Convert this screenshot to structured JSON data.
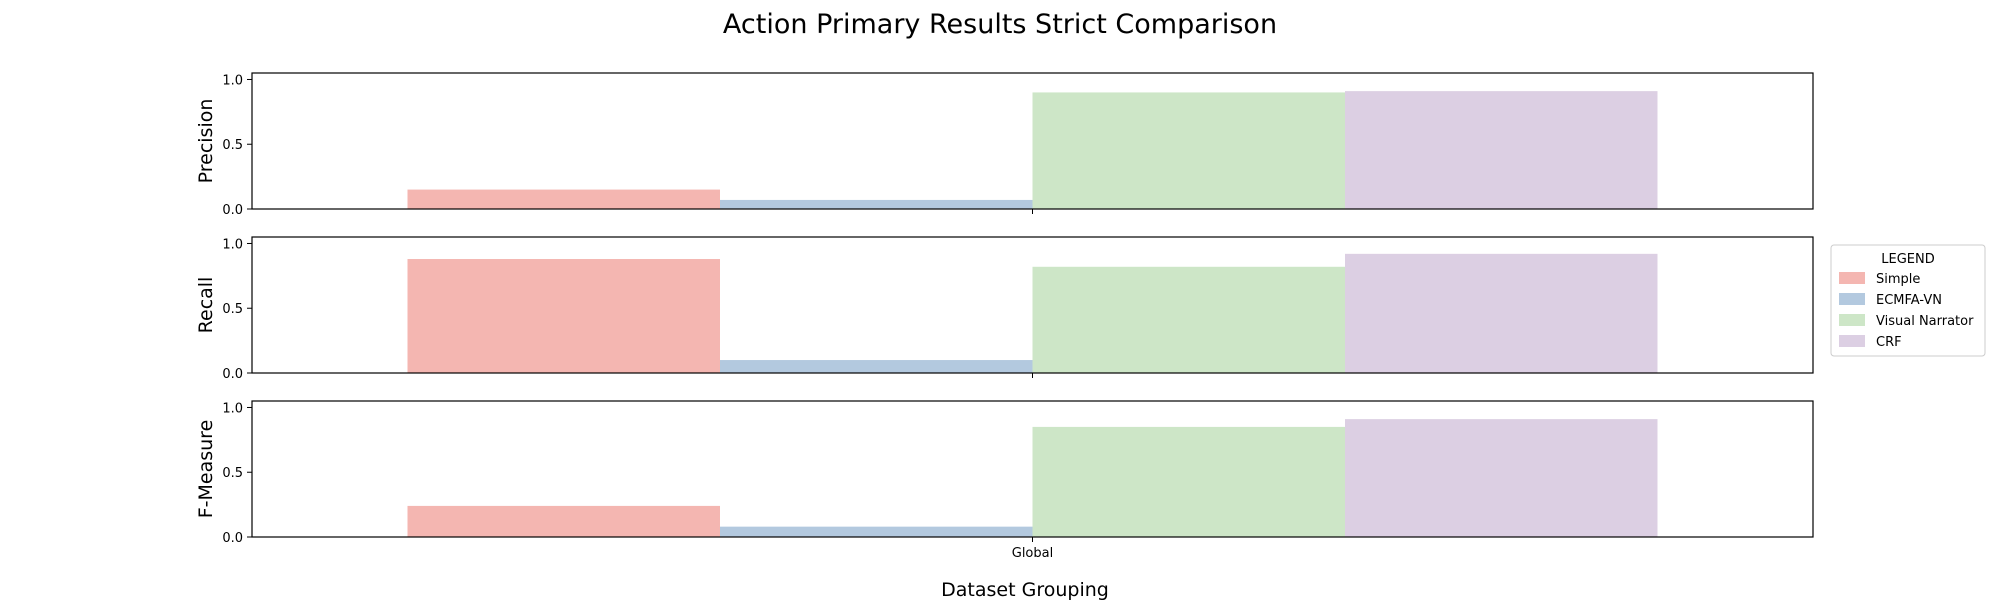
{
  "chart_data": {
    "type": "bar",
    "title": "Action Primary Results Strict Comparison",
    "xlabel": "Dataset Grouping",
    "categories": [
      "Global"
    ],
    "ylim": [
      0,
      1.05
    ],
    "yticks": [
      "0.0",
      "0.5",
      "1.0"
    ],
    "legend": {
      "title": "LEGEND",
      "placement": "right"
    },
    "series": [
      {
        "name": "Simple",
        "color": "#f4b6b1"
      },
      {
        "name": "ECMFA-VN",
        "color": "#b3c9df"
      },
      {
        "name": "Visual Narrator",
        "color": "#cde6c7"
      },
      {
        "name": "CRF",
        "color": "#dccfe3"
      }
    ],
    "panels": [
      {
        "ylabel": "Precision",
        "values": [
          0.15,
          0.07,
          0.9,
          0.91
        ]
      },
      {
        "ylabel": "Recall",
        "values": [
          0.88,
          0.1,
          0.82,
          0.92
        ]
      },
      {
        "ylabel": "F-Measure",
        "values": [
          0.24,
          0.08,
          0.85,
          0.91
        ]
      }
    ]
  }
}
